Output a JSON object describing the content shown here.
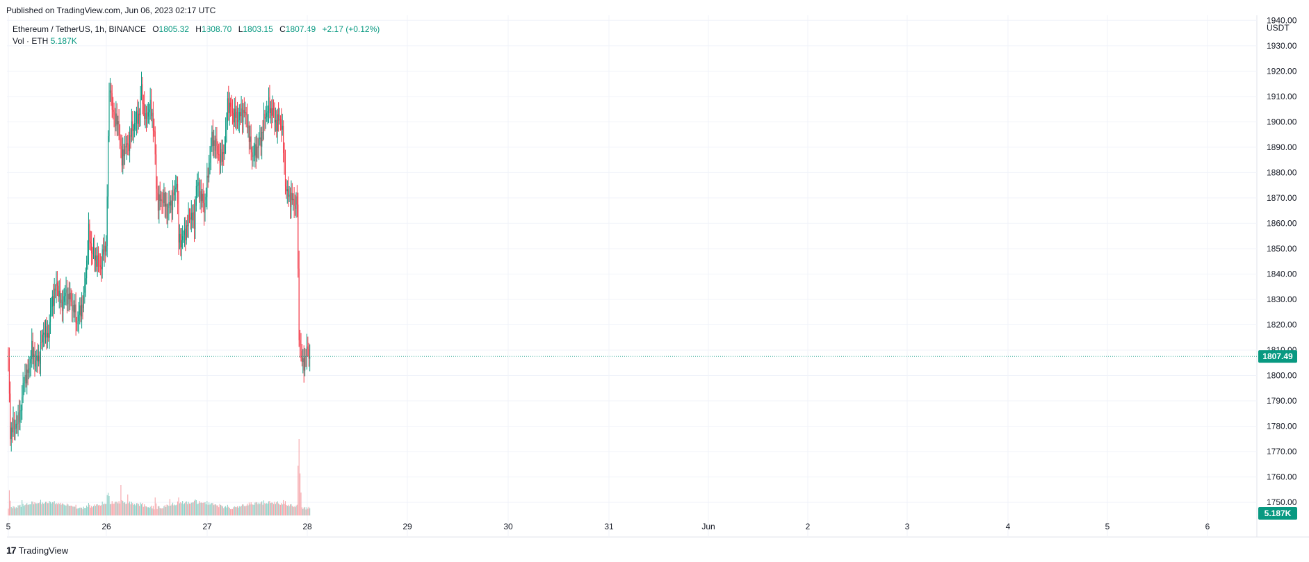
{
  "header": {
    "published": "Published on TradingView.com, Jun 06, 2023 02:17 UTC"
  },
  "legend": {
    "symbol": "Ethereum / TetherUS, 1h, BINANCE",
    "open_label": "O",
    "open": "1805.32",
    "high_label": "H",
    "high": "1808.70",
    "low_label": "L",
    "low": "1803.15",
    "close_label": "C",
    "close": "1807.49",
    "change": "+2.17 (+0.12%)",
    "volume_label": "Vol · ETH",
    "volume": "5.187K"
  },
  "footer": {
    "logo_glyph": "17",
    "brand": "TradingView"
  },
  "colors": {
    "up": "#089981",
    "down": "#f23645",
    "up_volume": "#8fd0c6",
    "down_volume": "#f5a3a8",
    "grid": "#f0f3fa",
    "axis_text": "#131722",
    "price_badge": "#089981"
  },
  "chart_data": {
    "type": "candlestick",
    "symbol": "ETHUSDT",
    "interval": "1h",
    "currency": "USDT",
    "price_axis": {
      "unit_label": "USDT",
      "ylim": [
        1744,
        1942
      ],
      "ticks": [
        "1940.00",
        "1930.00",
        "1920.00",
        "1910.00",
        "1900.00",
        "1890.00",
        "1880.00",
        "1870.00",
        "1860.00",
        "1850.00",
        "1840.00",
        "1830.00",
        "1820.00",
        "1810.00",
        "1800.00",
        "1790.00",
        "1780.00",
        "1770.00",
        "1760.00",
        "1750.00"
      ]
    },
    "time_axis": {
      "labels": [
        "5",
        "26",
        "27",
        "28",
        "29",
        "30",
        "31",
        "Jun",
        "2",
        "3",
        "4",
        "5",
        "6"
      ]
    },
    "last_price": "1807.49",
    "last_volume": "5.187K",
    "grid": true,
    "close_path": [
      [
        0,
        1805
      ],
      [
        2,
        1778
      ],
      [
        6,
        1780
      ],
      [
        10,
        1782
      ],
      [
        14,
        1790
      ],
      [
        16,
        1800
      ],
      [
        19,
        1799
      ],
      [
        24,
        1810
      ],
      [
        28,
        1805
      ],
      [
        32,
        1808
      ],
      [
        36,
        1818
      ],
      [
        40,
        1815
      ],
      [
        45,
        1830
      ],
      [
        50,
        1836
      ],
      [
        54,
        1827
      ],
      [
        58,
        1832
      ],
      [
        62,
        1831
      ],
      [
        67,
        1826
      ],
      [
        70,
        1821
      ],
      [
        74,
        1826
      ],
      [
        77,
        1830
      ],
      [
        79,
        1840
      ],
      [
        82,
        1856
      ],
      [
        86,
        1848
      ],
      [
        90,
        1846
      ],
      [
        94,
        1843
      ],
      [
        98,
        1850
      ],
      [
        100,
        1852
      ],
      [
        101,
        1868
      ],
      [
        102,
        1895
      ],
      [
        103,
        1910
      ],
      [
        104,
        1916
      ],
      [
        106,
        1904
      ],
      [
        110,
        1901
      ],
      [
        114,
        1895
      ],
      [
        116,
        1883
      ],
      [
        118,
        1890
      ],
      [
        122,
        1890
      ],
      [
        126,
        1897
      ],
      [
        130,
        1900
      ],
      [
        134,
        1904
      ],
      [
        136,
        1913
      ],
      [
        140,
        1900
      ],
      [
        144,
        1906
      ],
      [
        147,
        1903
      ],
      [
        149,
        1895
      ],
      [
        151,
        1875
      ],
      [
        153,
        1868
      ],
      [
        158,
        1870
      ],
      [
        162,
        1865
      ],
      [
        166,
        1868
      ],
      [
        170,
        1872
      ],
      [
        172,
        1878
      ],
      [
        174,
        1853
      ],
      [
        178,
        1854
      ],
      [
        182,
        1858
      ],
      [
        186,
        1864
      ],
      [
        190,
        1860
      ],
      [
        192,
        1875
      ],
      [
        196,
        1872
      ],
      [
        200,
        1866
      ],
      [
        203,
        1875
      ],
      [
        205,
        1884
      ],
      [
        208,
        1893
      ],
      [
        212,
        1891
      ],
      [
        214,
        1888
      ],
      [
        218,
        1885
      ],
      [
        222,
        1894
      ],
      [
        224,
        1908
      ],
      [
        228,
        1904
      ],
      [
        232,
        1902
      ],
      [
        236,
        1902
      ],
      [
        240,
        1904
      ],
      [
        244,
        1901
      ],
      [
        246,
        1893
      ],
      [
        250,
        1886
      ],
      [
        254,
        1890
      ],
      [
        258,
        1893
      ],
      [
        262,
        1902
      ],
      [
        266,
        1906
      ],
      [
        270,
        1904
      ],
      [
        274,
        1899
      ],
      [
        278,
        1902
      ],
      [
        280,
        1895
      ],
      [
        282,
        1883
      ],
      [
        284,
        1872
      ],
      [
        288,
        1870
      ],
      [
        292,
        1868
      ],
      [
        295,
        1868
      ],
      [
        296,
        1840
      ],
      [
        297,
        1817
      ],
      [
        298,
        1812
      ],
      [
        300,
        1805
      ],
      [
        303,
        1806
      ],
      [
        306,
        1811
      ],
      [
        308,
        1807.49
      ]
    ],
    "volume_ylim": [
      0,
      100
    ],
    "volume_spikes": [
      [
        1,
        66
      ],
      [
        14,
        40
      ],
      [
        115,
        80
      ],
      [
        122,
        55
      ],
      [
        150,
        47
      ],
      [
        165,
        43
      ],
      [
        178,
        38
      ],
      [
        216,
        30
      ],
      [
        260,
        28
      ],
      [
        295,
        28
      ],
      [
        296,
        130
      ],
      [
        297,
        200
      ],
      [
        298,
        110
      ],
      [
        299,
        60
      ]
    ]
  }
}
